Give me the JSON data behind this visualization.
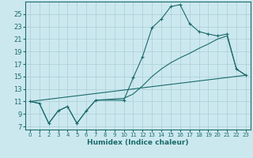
{
  "xlabel": "Humidex (Indice chaleur)",
  "bg_color": "#cce8ef",
  "line_color": "#1a6b6b",
  "grid_color": "#aacdd6",
  "xlim": [
    -0.5,
    23.5
  ],
  "ylim": [
    6.5,
    27
  ],
  "xticks": [
    0,
    1,
    2,
    3,
    4,
    5,
    6,
    7,
    8,
    9,
    10,
    11,
    12,
    13,
    14,
    15,
    16,
    17,
    18,
    19,
    20,
    21,
    22,
    23
  ],
  "yticks": [
    7,
    9,
    11,
    13,
    15,
    17,
    19,
    21,
    23,
    25
  ],
  "curve1_x": [
    0,
    1,
    2,
    3,
    4,
    5,
    6,
    7,
    10,
    11,
    12,
    13,
    14,
    15,
    16,
    17,
    18,
    19,
    20,
    21,
    22,
    23
  ],
  "curve1_y": [
    11,
    10.7,
    7.5,
    9.5,
    10.2,
    7.5,
    9.5,
    11.2,
    11.2,
    14.8,
    18.2,
    22.8,
    24.2,
    26.2,
    26.5,
    23.5,
    22.2,
    21.8,
    21.5,
    21.8,
    16.2,
    15.2
  ],
  "curve2_x": [
    0,
    1,
    2,
    3,
    4,
    5,
    6,
    7,
    10,
    11,
    12,
    13,
    14,
    15,
    16,
    17,
    18,
    19,
    20,
    21,
    22,
    23
  ],
  "curve2_y": [
    11,
    10.7,
    7.5,
    9.5,
    10.2,
    7.5,
    9.5,
    11.2,
    11.5,
    12.2,
    13.5,
    15.0,
    16.2,
    17.2,
    18.0,
    18.7,
    19.5,
    20.2,
    21.0,
    21.5,
    16.2,
    15.2
  ],
  "curve3_x": [
    0,
    23
  ],
  "curve3_y": [
    11,
    15.2
  ]
}
